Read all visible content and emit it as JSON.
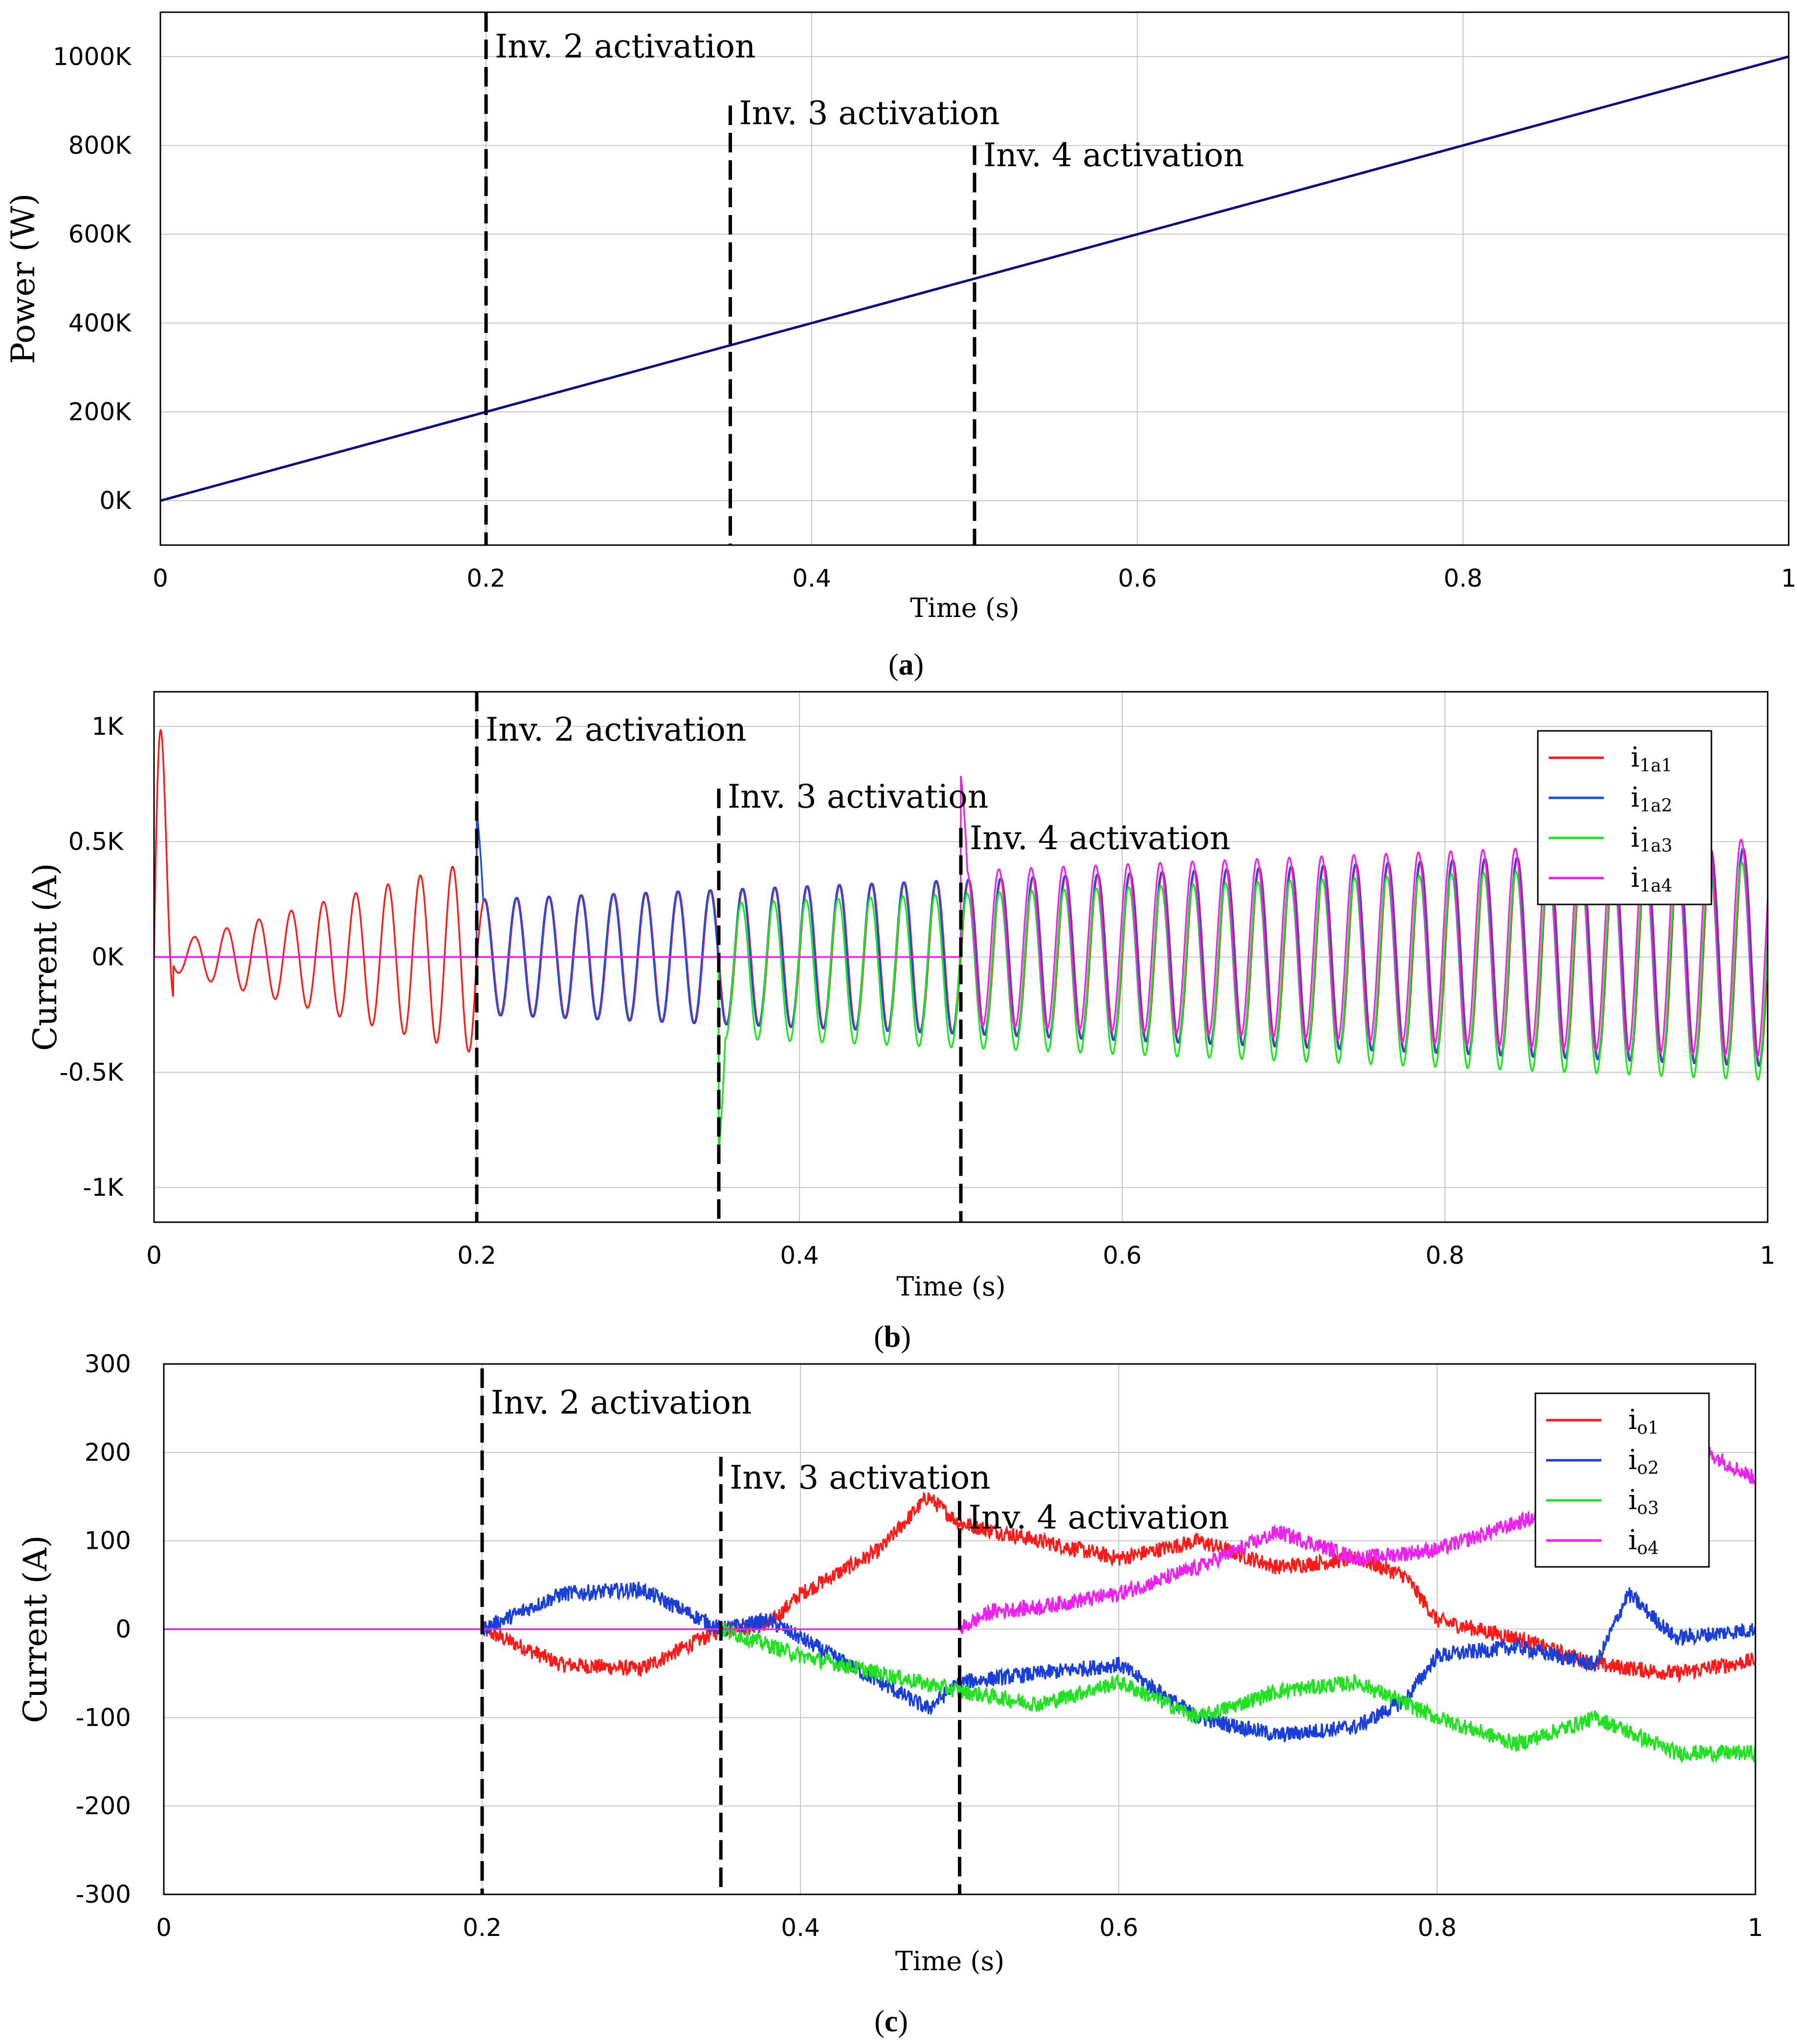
{
  "chart_data": [
    {
      "id": "a",
      "type": "line",
      "caption": "(a)",
      "caption_letter": "a",
      "xlabel": "Time (s)",
      "ylabel": "Power (W)",
      "xlim": [
        0,
        1
      ],
      "ylim": [
        -100000,
        1100000
      ],
      "x_ticks": [
        0,
        0.2,
        0.4,
        0.6,
        0.8,
        1
      ],
      "x_tick_labels": [
        "0",
        "0.2",
        "0.4",
        "0.6",
        "0.8",
        "1"
      ],
      "y_ticks": [
        0,
        200000,
        400000,
        600000,
        800000,
        1000000
      ],
      "y_tick_labels": [
        "0K",
        "200K",
        "400K",
        "600K",
        "800K",
        "1000K"
      ],
      "grid": true,
      "series": [
        {
          "name": "Power",
          "color": "#0a0a80",
          "kind": "linear",
          "x": [
            0,
            1
          ],
          "y": [
            0,
            1000000
          ]
        }
      ],
      "annotations": [
        {
          "x": 0.2,
          "text": "Inv. 2 activation",
          "y_top": 1110000,
          "label_y": 1020000
        },
        {
          "x": 0.35,
          "text": "Inv. 3 activation",
          "y_top": 890000,
          "label_y": 870000
        },
        {
          "x": 0.5,
          "text": "Inv. 4 activation",
          "y_top": 800000,
          "label_y": 775000
        }
      ]
    },
    {
      "id": "b",
      "type": "line",
      "caption": "(b)",
      "caption_letter": "b",
      "xlabel": "Time (s)",
      "ylabel": "Current (A)",
      "xlim": [
        0,
        1
      ],
      "ylim": [
        -1150,
        1150
      ],
      "x_ticks": [
        0,
        0.2,
        0.4,
        0.6,
        0.8,
        1
      ],
      "x_tick_labels": [
        "0",
        "0.2",
        "0.4",
        "0.6",
        "0.8",
        "1"
      ],
      "y_ticks": [
        -1000,
        -500,
        0,
        500,
        1000
      ],
      "y_tick_labels": [
        "-1K",
        "-0.5K",
        "0K",
        "0.5K",
        "1K"
      ],
      "grid": true,
      "legend_position": "top-right",
      "series": [
        {
          "name": "i1a1",
          "label_main": "i",
          "label_sub": "1a1",
          "color": "#ff1a1a",
          "kind": "ac",
          "start": 0.0,
          "freq_hz": 50
        },
        {
          "name": "i1a2",
          "label_main": "i",
          "label_sub": "1a2",
          "color": "#1a4fd8",
          "kind": "ac",
          "start": 0.2,
          "freq_hz": 50
        },
        {
          "name": "i1a3",
          "label_main": "i",
          "label_sub": "1a3",
          "color": "#1ee61e",
          "kind": "ac",
          "start": 0.35,
          "freq_hz": 50
        },
        {
          "name": "i1a4",
          "label_main": "i",
          "label_sub": "1a4",
          "color": "#ee22ee",
          "kind": "ac",
          "start": 0.5,
          "freq_hz": 50
        }
      ],
      "annotations": [
        {
          "x": 0.2,
          "text": "Inv. 2 activation",
          "y_top": 1130000,
          "label_y": 980
        },
        {
          "x": 0.35,
          "text": "Inv. 3 activation",
          "y_top": 730,
          "label_y": 690
        },
        {
          "x": 0.5,
          "text": "Inv. 4 activation",
          "y_top": 560,
          "label_y": 510
        }
      ]
    },
    {
      "id": "c",
      "type": "line",
      "caption": "(c)",
      "caption_letter": "c",
      "xlabel": "Time (s)",
      "ylabel": "Current (A)",
      "xlim": [
        0,
        1
      ],
      "ylim": [
        -300,
        300
      ],
      "x_ticks": [
        0,
        0.2,
        0.4,
        0.6,
        0.8,
        1
      ],
      "x_tick_labels": [
        "0",
        "0.2",
        "0.4",
        "0.6",
        "0.8",
        "1"
      ],
      "y_ticks": [
        -300,
        -200,
        -100,
        0,
        100,
        200,
        300
      ],
      "y_tick_labels": [
        "-300",
        "-200",
        "-100",
        "0",
        "100",
        "200",
        "300"
      ],
      "grid": true,
      "legend_position": "top-right",
      "series": [
        {
          "name": "io1",
          "label_main": "i",
          "label_sub": "o1",
          "color": "#ff1a1a",
          "kind": "dc",
          "x": [
            0,
            0.2,
            0.25,
            0.3,
            0.35,
            0.38,
            0.4,
            0.45,
            0.48,
            0.5,
            0.55,
            0.6,
            0.65,
            0.7,
            0.75,
            0.78,
            0.8,
            0.85,
            0.9,
            0.95,
            1.0
          ],
          "y": [
            0,
            0,
            -40,
            -45,
            0,
            5,
            40,
            90,
            150,
            120,
            100,
            80,
            100,
            70,
            80,
            60,
            10,
            -10,
            -40,
            -50,
            -35
          ]
        },
        {
          "name": "io2",
          "label_main": "i",
          "label_sub": "o2",
          "color": "#1a3fd8",
          "kind": "dc",
          "x": [
            0,
            0.2,
            0.25,
            0.3,
            0.35,
            0.38,
            0.4,
            0.45,
            0.48,
            0.5,
            0.55,
            0.6,
            0.65,
            0.7,
            0.75,
            0.78,
            0.8,
            0.85,
            0.9,
            0.92,
            0.95,
            1.0
          ],
          "y": [
            0,
            0,
            40,
            45,
            0,
            10,
            -10,
            -60,
            -90,
            -60,
            -50,
            -40,
            -100,
            -120,
            -110,
            -80,
            -30,
            -20,
            -40,
            40,
            -10,
            0
          ]
        },
        {
          "name": "io3",
          "label_main": "i",
          "label_sub": "o3",
          "color": "#22e022",
          "kind": "dc",
          "x": [
            0,
            0.35,
            0.4,
            0.45,
            0.5,
            0.55,
            0.6,
            0.65,
            0.7,
            0.75,
            0.8,
            0.85,
            0.9,
            0.95,
            1.0
          ],
          "y": [
            0,
            0,
            -30,
            -50,
            -70,
            -85,
            -60,
            -100,
            -70,
            -60,
            -100,
            -130,
            -100,
            -140,
            -140
          ]
        },
        {
          "name": "io4",
          "label_main": "i",
          "label_sub": "o4",
          "color": "#ee22ee",
          "kind": "dc",
          "x": [
            0,
            0.5,
            0.52,
            0.55,
            0.6,
            0.65,
            0.7,
            0.75,
            0.8,
            0.85,
            0.9,
            0.95,
            0.97,
            1.0
          ],
          "y": [
            0,
            0,
            20,
            25,
            40,
            70,
            110,
            80,
            90,
            120,
            150,
            180,
            200,
            170
          ]
        }
      ],
      "annotations": [
        {
          "x": 0.2,
          "text": "Inv. 2 activation",
          "y_top": 295,
          "label_y": 255
        },
        {
          "x": 0.35,
          "text": "Inv. 3 activation",
          "y_top": 195,
          "label_y": 170
        },
        {
          "x": 0.5,
          "text": "Inv. 4 activation",
          "y_top": 145,
          "label_y": 125
        }
      ]
    }
  ]
}
